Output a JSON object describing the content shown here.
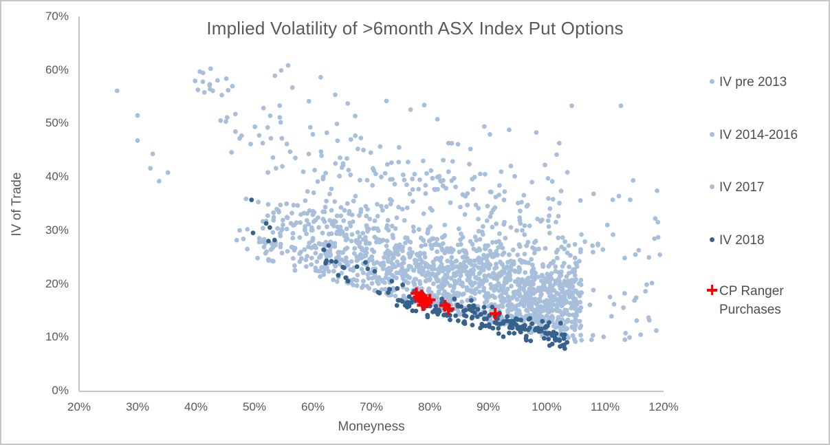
{
  "chart_data": {
    "type": "scatter",
    "title": "Implied Volatility of >6month ASX Index Put Options",
    "xlabel": "Moneyness",
    "ylabel": "IV of Trade",
    "xlim": [
      0.2,
      1.2
    ],
    "ylim": [
      0.0,
      0.7
    ],
    "x_tick_labels": [
      "20%",
      "30%",
      "40%",
      "50%",
      "60%",
      "70%",
      "80%",
      "90%",
      "100%",
      "110%",
      "120%"
    ],
    "y_tick_labels": [
      "0%",
      "10%",
      "20%",
      "30%",
      "40%",
      "50%",
      "60%",
      "70%"
    ],
    "grid": false,
    "legend_position": "right",
    "colors": {
      "light_blue": "#A7BFDA",
      "dark_blue": "#35618C",
      "red": "#FF0000",
      "axis_line": "#C4C4C4",
      "axis_text": "#595959",
      "border": "#C6C6C6"
    },
    "generator_seed": 1337,
    "series": [
      {
        "name": "IV pre 2013",
        "marker": "circle",
        "color": "#A7BFDA",
        "points": [
          [
            0.265,
            0.561
          ],
          [
            0.3,
            0.515
          ],
          [
            0.3,
            0.468
          ],
          [
            0.326,
            0.443
          ],
          [
            0.322,
            0.416
          ],
          [
            0.337,
            0.392
          ],
          [
            0.352,
            0.408
          ],
          [
            1.043,
            0.533
          ],
          [
            1.127,
            0.533
          ],
          [
            0.455,
            0.562
          ],
          [
            0.565,
            0.567
          ]
        ],
        "clusters": [
          {
            "kind": "linband",
            "n": 118,
            "m": [
              0.44,
              1.02
            ],
            "mpow": 1.0,
            "base": [
              0.565,
              -0.26
            ],
            "sigma": 0.012,
            "tailp": 1.0,
            "tailscale": 0.055,
            "tailmax": 0.17
          },
          {
            "kind": "gauss",
            "n": 14,
            "c": [
              0.418,
              0.572
            ],
            "s": [
              0.013,
              0.015
            ]
          }
        ]
      },
      {
        "name": "IV 2014-2016",
        "marker": "circle",
        "color": "#A7BFDA",
        "points": [],
        "clusters": [
          {
            "kind": "linband",
            "n": 1050,
            "m": [
              0.46,
              1.06
            ],
            "mpow": 0.55,
            "base": [
              0.42,
              -0.245
            ],
            "sigma": 0.045,
            "tailp": 0.15,
            "tailscale": 0.1,
            "tailmax": 0.2,
            "floor": [
              0.385,
              -0.285
            ]
          }
        ]
      },
      {
        "name": "IV 2017",
        "marker": "circle",
        "color": "#A7BFDA",
        "points": [],
        "clusters": [
          {
            "kind": "linband",
            "n": 520,
            "m": [
              0.52,
              1.05
            ],
            "mpow": 0.6,
            "base": [
              0.415,
              -0.24
            ],
            "sigma": 0.04,
            "tailp": 0.1,
            "tailscale": 0.08,
            "tailmax": 0.15,
            "floor": [
              0.385,
              -0.285
            ]
          },
          {
            "kind": "uni",
            "n": 48,
            "m": [
              1.05,
              1.195
            ],
            "iv": [
              0.095,
              0.4
            ],
            "ivpow": 1.25
          }
        ]
      },
      {
        "name": "IV 2018",
        "marker": "circle",
        "color": "#35618C",
        "points": [
          [
            0.495,
            0.357
          ],
          [
            0.66,
            0.205
          ],
          [
            0.69,
            0.24
          ],
          [
            1.03,
            0.086
          ],
          [
            0.735,
            0.205
          ]
        ],
        "clusters": [
          {
            "kind": "linband",
            "n": 180,
            "m": [
              0.74,
              1.035
            ],
            "mpow": 0.85,
            "base": [
              0.375,
              -0.27
            ],
            "sigma": 0.013
          },
          {
            "kind": "linband",
            "n": 22,
            "m": [
              0.48,
              0.75
            ],
            "mpow": 1.0,
            "base": [
              0.52,
              -0.44
            ],
            "sigma": 0.018
          }
        ]
      },
      {
        "name": "CP Ranger Purchases",
        "marker": "plus",
        "color": "#FF0000",
        "points": [
          [
            0.777,
            0.182
          ],
          [
            0.781,
            0.175
          ],
          [
            0.786,
            0.178
          ],
          [
            0.784,
            0.169
          ],
          [
            0.79,
            0.172
          ],
          [
            0.795,
            0.165
          ],
          [
            0.788,
            0.16
          ],
          [
            0.8,
            0.17
          ],
          [
            0.826,
            0.159
          ],
          [
            0.832,
            0.153
          ],
          [
            0.912,
            0.144
          ]
        ],
        "clusters": []
      }
    ]
  }
}
